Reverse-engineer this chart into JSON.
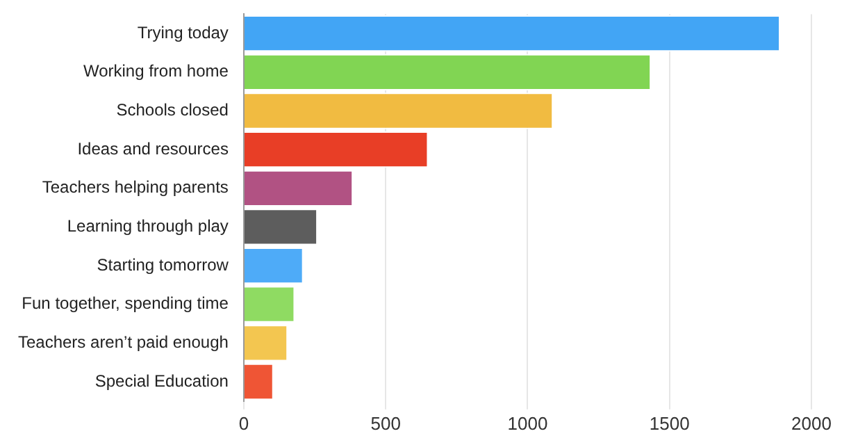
{
  "chart_data": {
    "type": "bar",
    "orientation": "horizontal",
    "categories": [
      "Trying today",
      "Working from home",
      "Schools closed",
      "Ideas and resources",
      "Teachers helping parents",
      "Learning through play",
      "Starting tomorrow",
      "Fun together, spending time",
      "Teachers aren’t paid enough",
      "Special Education"
    ],
    "values": [
      1890,
      1435,
      1090,
      650,
      385,
      260,
      210,
      180,
      155,
      105
    ],
    "colors": [
      "#42a5f5",
      "#81d553",
      "#f1bb41",
      "#e83e26",
      "#b15283",
      "#5d5d5d",
      "#4eabf8",
      "#8fdb62",
      "#f3c650",
      "#ef5535"
    ],
    "xlim": [
      0,
      2000
    ],
    "xticks": [
      0,
      500,
      1000,
      1500,
      2000
    ],
    "grid": "x",
    "legend": false
  }
}
